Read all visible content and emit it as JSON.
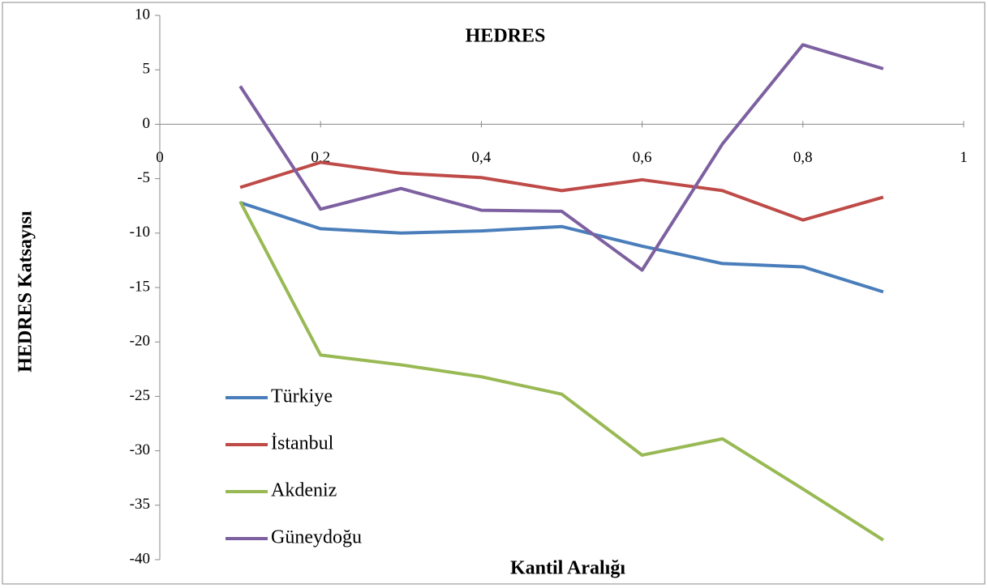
{
  "chart_data": {
    "type": "line",
    "title": "HEDRES",
    "xlabel": "Kantil Aralığı",
    "ylabel": "HEDRES Katsayısı",
    "x": [
      0.1,
      0.2,
      0.3,
      0.4,
      0.5,
      0.6,
      0.7,
      0.8,
      0.9
    ],
    "series": [
      {
        "name": "Türkiye",
        "color": "#4a7ebb",
        "values": [
          -7.2,
          -9.6,
          -10.0,
          -9.8,
          -9.4,
          -11.2,
          -12.8,
          -13.1,
          -15.4
        ]
      },
      {
        "name": "İstanbul",
        "color": "#be4b48",
        "values": [
          -5.8,
          -3.5,
          -4.5,
          -4.9,
          -6.1,
          -5.1,
          -6.1,
          -8.8,
          -6.7
        ]
      },
      {
        "name": "Akdeniz",
        "color": "#98b954",
        "values": [
          -7.1,
          -21.2,
          -22.1,
          -23.2,
          -24.8,
          -30.4,
          -28.9,
          -33.5,
          -38.2
        ]
      },
      {
        "name": "Güneydoğu",
        "color": "#7d60a0",
        "values": [
          3.5,
          -7.8,
          -5.9,
          -7.9,
          -8.0,
          -13.4,
          -1.8,
          7.3,
          5.1
        ]
      }
    ],
    "xlim": [
      0,
      1
    ],
    "xticks": [
      0,
      {
        "value": 0.2,
        "label": "0,2"
      },
      {
        "value": 0.4,
        "label": "0,4"
      },
      {
        "value": 0.6,
        "label": "0,6"
      },
      {
        "value": 0.8,
        "label": "0,8"
      },
      1
    ],
    "ylim": [
      -40,
      10
    ],
    "yticks": [
      -40,
      -35,
      -30,
      -25,
      -20,
      -15,
      -10,
      -5,
      0,
      5,
      10
    ],
    "grid": false,
    "legend": "lower left"
  }
}
